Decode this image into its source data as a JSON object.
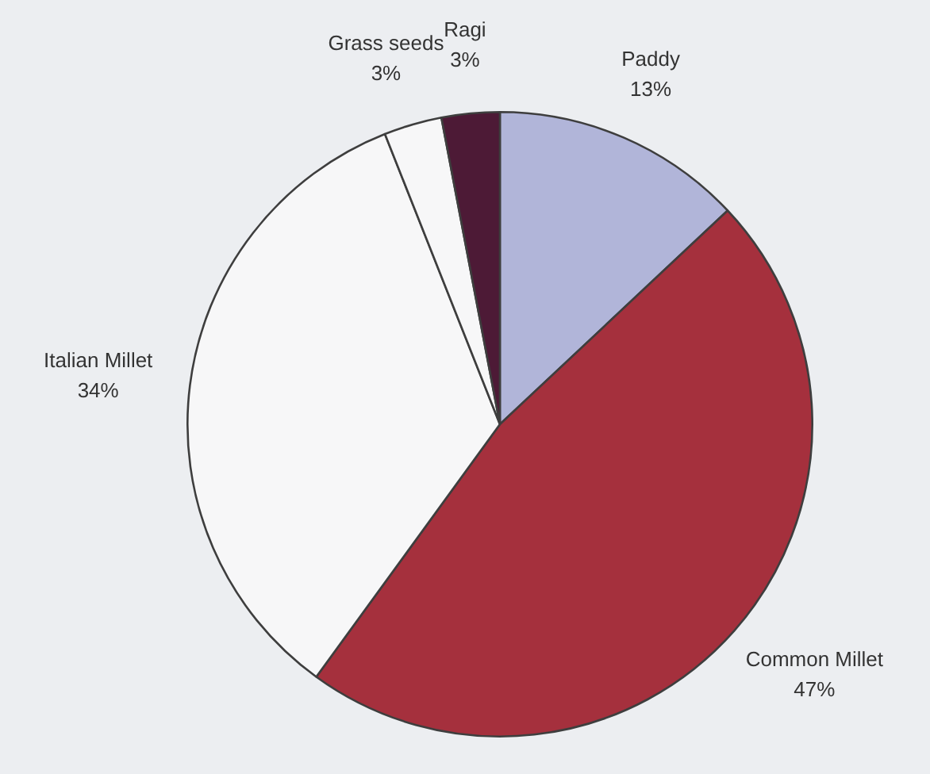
{
  "chart_data": {
    "type": "pie",
    "categories": [
      "Paddy",
      "Common Millet",
      "Italian Millet",
      "Grass seeds",
      "Ragi"
    ],
    "values": [
      13,
      47,
      34,
      3,
      3
    ],
    "colors": [
      "#b1b5d9",
      "#a5303d",
      "#f7f7f8",
      "#f7f7f8",
      "#4d1a36"
    ],
    "value_labels": [
      "13%",
      "47%",
      "34%",
      "3%",
      "3%"
    ]
  }
}
